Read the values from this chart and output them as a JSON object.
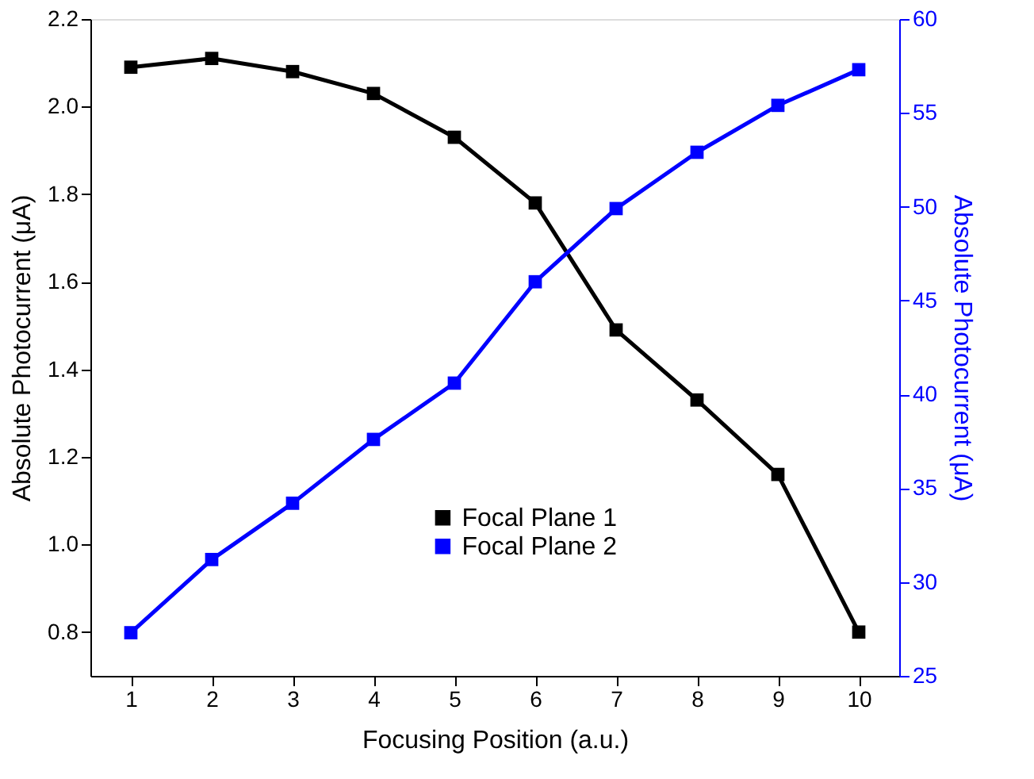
{
  "chart_data": {
    "type": "line",
    "xlabel": "Focusing Position (a.u.)",
    "ylabel": "Absolute Photocurrent (μA)",
    "y2label": "Absolute Photocurrent (μA)",
    "x": [
      1,
      2,
      3,
      4,
      5,
      6,
      7,
      8,
      9,
      10
    ],
    "xlim": [
      0.5,
      10.5
    ],
    "xticks": [
      1,
      2,
      3,
      4,
      5,
      6,
      7,
      8,
      9,
      10
    ],
    "ylim": [
      0.7,
      2.2
    ],
    "yticks": [
      0.8,
      {
        "value": 1,
        "label": "1.0"
      },
      1.2,
      1.4,
      1.6,
      1.8,
      {
        "value": 2,
        "label": "2.0"
      },
      2.2
    ],
    "y2lim": [
      25,
      60
    ],
    "y2ticks": [
      25,
      30,
      35,
      40,
      45,
      50,
      55,
      60
    ],
    "series": [
      {
        "name": "Focal Plane 1",
        "color": "#000000",
        "values": [
          2.09,
          2.11,
          2.08,
          2.03,
          1.93,
          1.78,
          1.49,
          1.33,
          1.16,
          0.8
        ]
      },
      {
        "name": "Focal Plane 2",
        "color": "#0000ff",
        "axis": "y2",
        "values": [
          27.3,
          31.2,
          34.2,
          37.6,
          40.6,
          46.0,
          49.9,
          52.9,
          55.4,
          57.3
        ]
      }
    ],
    "marker": "square",
    "line_style": "solid",
    "grid": false,
    "legend": "bottom"
  }
}
